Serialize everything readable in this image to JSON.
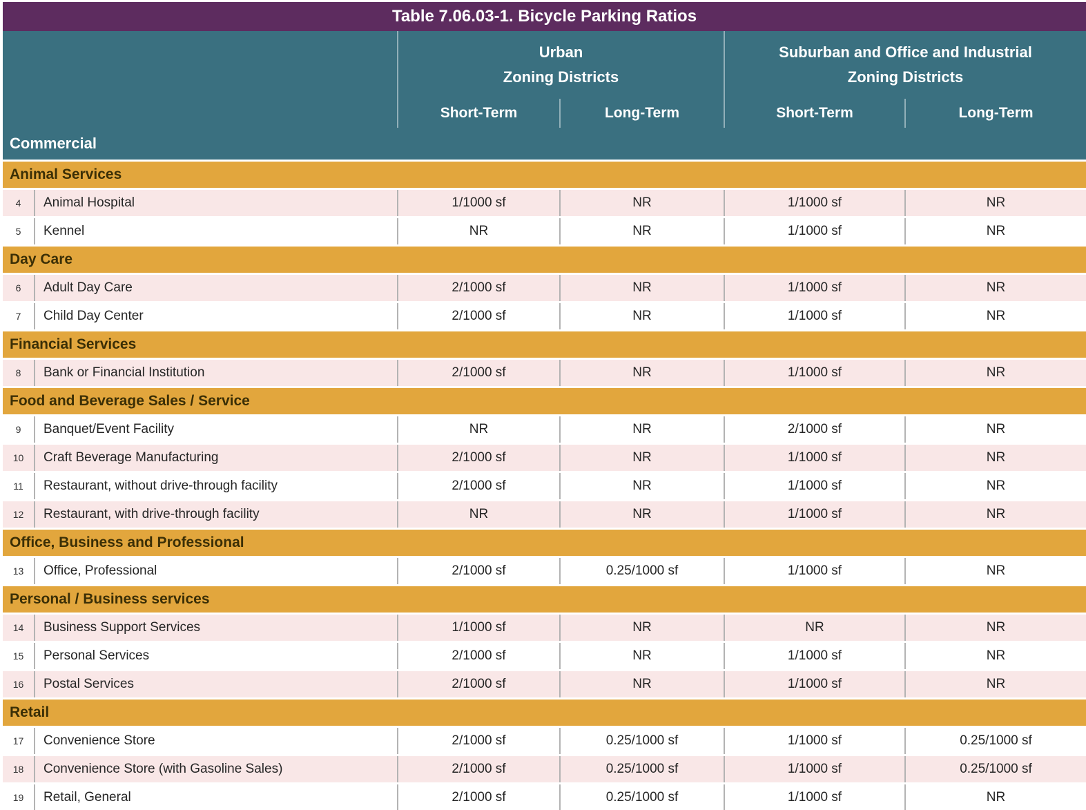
{
  "title": "Table 7.06.03-1. Bicycle Parking Ratios",
  "section_label": "Commercial",
  "header": {
    "groups": [
      {
        "line1": "Urban",
        "line2": "Zoning Districts",
        "sub": [
          "Short-Term",
          "Long-Term"
        ]
      },
      {
        "line1": "Suburban and Office and Industrial",
        "line2": "Zoning Districts",
        "sub": [
          "Short-Term",
          "Long-Term"
        ]
      }
    ]
  },
  "categories": [
    {
      "name": "Animal Services",
      "rows": [
        {
          "num": "4",
          "use": "Animal Hospital",
          "values": [
            "1/1000 sf",
            "NR",
            "1/1000 sf",
            "NR"
          ]
        },
        {
          "num": "5",
          "use": "Kennel",
          "values": [
            "NR",
            "NR",
            "1/1000 sf",
            "NR"
          ]
        }
      ]
    },
    {
      "name": "Day Care",
      "rows": [
        {
          "num": "6",
          "use": "Adult Day Care",
          "values": [
            "2/1000 sf",
            "NR",
            "1/1000 sf",
            "NR"
          ]
        },
        {
          "num": "7",
          "use": "Child Day Center",
          "values": [
            "2/1000 sf",
            "NR",
            "1/1000 sf",
            "NR"
          ]
        }
      ]
    },
    {
      "name": "Financial Services",
      "rows": [
        {
          "num": "8",
          "use": "Bank or Financial Institution",
          "values": [
            "2/1000 sf",
            "NR",
            "1/1000 sf",
            "NR"
          ]
        }
      ]
    },
    {
      "name": "Food and Beverage Sales / Service",
      "rows": [
        {
          "num": "9",
          "use": "Banquet/Event Facility",
          "values": [
            "NR",
            "NR",
            "2/1000 sf",
            "NR"
          ]
        },
        {
          "num": "10",
          "use": "Craft Beverage Manufacturing",
          "values": [
            "2/1000 sf",
            "NR",
            "1/1000 sf",
            "NR"
          ]
        },
        {
          "num": "11",
          "use": "Restaurant, without drive-through facility",
          "values": [
            "2/1000 sf",
            "NR",
            "1/1000 sf",
            "NR"
          ]
        },
        {
          "num": "12",
          "use": "Restaurant, with drive-through facility",
          "values": [
            "NR",
            "NR",
            "1/1000 sf",
            "NR"
          ]
        }
      ]
    },
    {
      "name": "Office, Business and Professional",
      "rows": [
        {
          "num": "13",
          "use": "Office, Professional",
          "values": [
            "2/1000 sf",
            "0.25/1000 sf",
            "1/1000 sf",
            "NR"
          ]
        }
      ]
    },
    {
      "name": "Personal / Business services",
      "rows": [
        {
          "num": "14",
          "use": "Business Support Services",
          "values": [
            "1/1000 sf",
            "NR",
            "NR",
            "NR"
          ]
        },
        {
          "num": "15",
          "use": "Personal Services",
          "values": [
            "2/1000 sf",
            "NR",
            "1/1000 sf",
            "NR"
          ]
        },
        {
          "num": "16",
          "use": "Postal Services",
          "values": [
            "2/1000 sf",
            "NR",
            "1/1000 sf",
            "NR"
          ]
        }
      ]
    },
    {
      "name": "Retail",
      "rows": [
        {
          "num": "17",
          "use": "Convenience Store",
          "values": [
            "2/1000 sf",
            "0.25/1000 sf",
            "1/1000 sf",
            "0.25/1000 sf"
          ]
        },
        {
          "num": "18",
          "use": "Convenience Store (with Gasoline Sales)",
          "values": [
            "2/1000 sf",
            "0.25/1000 sf",
            "1/1000 sf",
            "0.25/1000 sf"
          ]
        },
        {
          "num": "19",
          "use": "Retail, General",
          "values": [
            "2/1000 sf",
            "0.25/1000 sf",
            "1/1000 sf",
            "NR"
          ]
        }
      ]
    }
  ],
  "colors": {
    "title_bg": "#5d2c5f",
    "header_bg": "#3a7080",
    "category_bg": "#e2a63d",
    "row_pink": "#f9e7e7",
    "row_white": "#ffffff",
    "divider": "#b3b3b3",
    "header_text": "#ffffff",
    "category_text": "#3b2f06",
    "data_text": "#262626"
  }
}
